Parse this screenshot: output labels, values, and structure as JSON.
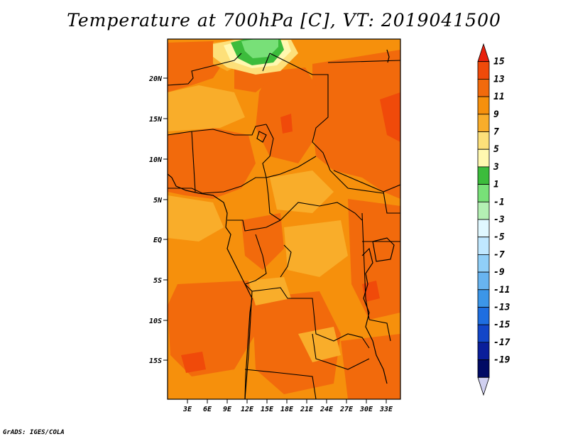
{
  "title": "Temperature at 700hPa [C], VT: 2019041500",
  "credit": "GrADS: IGES/COLA",
  "map": {
    "lat_labels": [
      "20N",
      "15N",
      "10N",
      "5N",
      "EQ",
      "5S",
      "10S",
      "15S"
    ],
    "lon_labels": [
      "3E",
      "6E",
      "9E",
      "12E",
      "15E",
      "18E",
      "21E",
      "24E",
      "27E",
      "30E",
      "33E"
    ]
  },
  "colorbar": {
    "labels": [
      "15",
      "13",
      "11",
      "9",
      "7",
      "5",
      "3",
      "1",
      "-1",
      "-3",
      "-5",
      "-7",
      "-9",
      "-11",
      "-13",
      "-15",
      "-17",
      "-19"
    ],
    "colors": [
      "#e8200c",
      "#f04a0a",
      "#f26a0c",
      "#f6900c",
      "#f9ad2a",
      "#fde07a",
      "#fff8b0",
      "#3cbc3c",
      "#78e078",
      "#b4f0b4",
      "#e0f8ff",
      "#c0e8ff",
      "#90cff8",
      "#68b4f0",
      "#3c96e8",
      "#1e6ee0",
      "#1246c8",
      "#0a1e9a",
      "#000a64",
      "#d0d0f0"
    ]
  }
}
